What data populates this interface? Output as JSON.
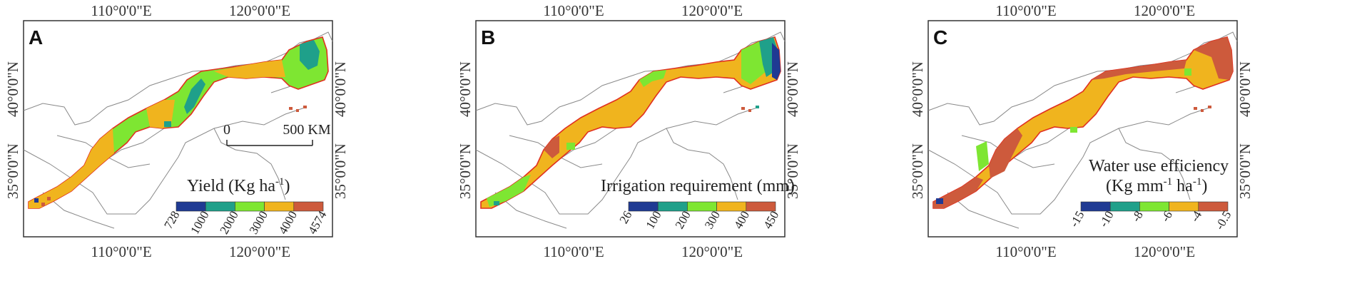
{
  "axis_labels": {
    "lon_110": "110°0'0\"E",
    "lon_120": "120°0'0\"E",
    "lat_35": "35°0'0\"N",
    "lat_40": "40°0'0\"N"
  },
  "panels": [
    {
      "letter": "A",
      "legend_title": "Yield (Kg ha",
      "legend_unit_sup": "-1",
      "legend_title_end": ")",
      "legend_title_line2": "",
      "legend_ticks": [
        "728",
        "1000",
        "2000",
        "3000",
        "4000",
        "4574"
      ],
      "legend_colors": [
        "#1f3a93",
        "#1fa08a",
        "#7ee632",
        "#f0b41e",
        "#cd5a3c"
      ],
      "scale_bar": {
        "start": "0",
        "end": "500 KM"
      }
    },
    {
      "letter": "B",
      "legend_title": "Irrigation requirement (mm)",
      "legend_ticks": [
        "26",
        "100",
        "200",
        "300",
        "400",
        "450"
      ],
      "legend_colors": [
        "#1f3a93",
        "#1fa08a",
        "#7ee632",
        "#f0b41e",
        "#cd5a3c"
      ]
    },
    {
      "letter": "C",
      "legend_title": "Water use efficiency",
      "legend_title_line2_pre": "(Kg mm",
      "legend_sup1": "-1",
      "legend_mid": " ha",
      "legend_sup2": "-1",
      "legend_end": ")",
      "legend_ticks": [
        "-15",
        "-10",
        "-8",
        "-6",
        "-4",
        "-0.5"
      ],
      "legend_colors": [
        "#1f3a93",
        "#1fa08a",
        "#7ee632",
        "#f0b41e",
        "#cd5a3c"
      ]
    }
  ],
  "colors": {
    "band_fill_A": "#7ee632",
    "band_fill_B": "#f0b41e",
    "band_fill_C": "#f0b41e",
    "outline_red": "#e03020",
    "admin_gray": "#8a8a8a"
  }
}
